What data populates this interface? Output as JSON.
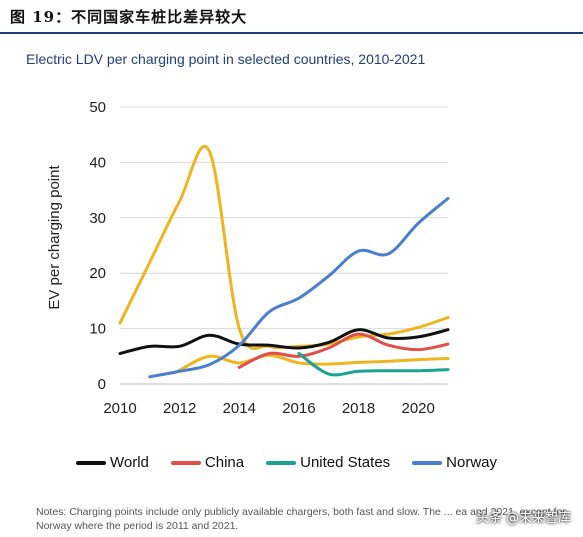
{
  "header": {
    "figure_title": "图 19：不同国家车桩比差异较大"
  },
  "chart_data": {
    "type": "line",
    "title": "Electric LDV per charging point in selected countries, 2010-2021",
    "xlabel": "",
    "ylabel": "EV per charging point",
    "xlim": [
      2010,
      2021
    ],
    "ylim": [
      0,
      50
    ],
    "x_ticks": [
      2010,
      2012,
      2014,
      2016,
      2018,
      2020
    ],
    "y_ticks": [
      0,
      10,
      20,
      30,
      40,
      50
    ],
    "grid": "horizontal",
    "legend_position": "bottom",
    "series": [
      {
        "name": "World",
        "color": "#111111",
        "x": [
          2010,
          2011,
          2012,
          2013,
          2014,
          2015,
          2016,
          2017,
          2018,
          2019,
          2020,
          2021
        ],
        "y": [
          5.5,
          6.8,
          6.8,
          8.8,
          7.2,
          7.0,
          6.5,
          7.5,
          9.8,
          8.3,
          8.5,
          9.8
        ]
      },
      {
        "name": "China",
        "color": "#e0504a",
        "x": [
          2014,
          2015,
          2016,
          2017,
          2018,
          2019,
          2020,
          2021
        ],
        "y": [
          3.0,
          5.5,
          5.0,
          6.5,
          9.0,
          7.0,
          6.2,
          7.2
        ]
      },
      {
        "name": "United States",
        "color": "#1aa394",
        "x": [
          2016,
          2017,
          2018,
          2019,
          2020,
          2021
        ],
        "y": [
          5.5,
          1.8,
          2.3,
          2.4,
          2.4,
          2.6
        ]
      },
      {
        "name": "Norway",
        "color": "#4a7fd0",
        "x": [
          2011,
          2012,
          2013,
          2014,
          2015,
          2016,
          2017,
          2018,
          2019,
          2020,
          2021
        ],
        "y": [
          1.3,
          2.3,
          3.5,
          7.0,
          13.0,
          15.5,
          19.5,
          24.0,
          23.5,
          29.0,
          33.5
        ]
      },
      {
        "name": "",
        "color": "#efb51f",
        "x": [
          2010,
          2011,
          2012,
          2013,
          2014,
          2015,
          2016,
          2017,
          2018,
          2019,
          2020,
          2021
        ],
        "y": [
          11.0,
          22.0,
          33.0,
          42.0,
          10.0,
          6.8,
          6.8,
          7.2,
          8.5,
          9.0,
          10.2,
          12.0
        ]
      },
      {
        "name": "",
        "color": "#efb51f",
        "x": [
          2012,
          2013,
          2014,
          2015,
          2016,
          2017,
          2018,
          2019,
          2020,
          2021
        ],
        "y": [
          2.5,
          5.0,
          3.8,
          5.2,
          3.8,
          3.6,
          3.9,
          4.1,
          4.4,
          4.6
        ]
      }
    ]
  },
  "notes": "Notes: Charging points include only publicly available chargers, both fast and slow. The ... ea and 2021, except for Norway where the period is 2011 and 2021.",
  "watermark": "头条 @未来智库"
}
